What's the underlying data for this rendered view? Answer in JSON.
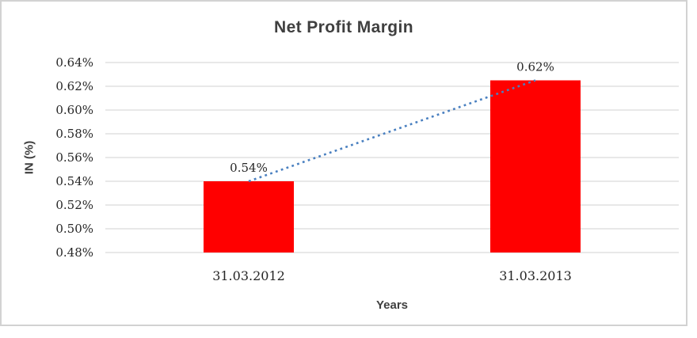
{
  "chart_data": {
    "type": "bar",
    "title": "Net Profit Margin",
    "xlabel": "Years",
    "ylabel": "IN (%)",
    "categories": [
      "31.03.2012",
      "31.03.2013"
    ],
    "values": [
      0.54,
      0.62
    ],
    "data_labels": [
      "0.54%",
      "0.62%"
    ],
    "plotted_values": [
      0.54,
      0.625
    ],
    "y_ticks": [
      "0.64%",
      "0.62%",
      "0.60%",
      "0.58%",
      "0.56%",
      "0.54%",
      "0.52%",
      "0.50%",
      "0.48%"
    ],
    "ylim": [
      0.48,
      0.64
    ],
    "y_step": 0.02,
    "grid": true,
    "legend": "none",
    "bar_color": "#ff0000",
    "gridline_color": "#d9d9d9",
    "trendline": {
      "type": "linear",
      "style": "dotted",
      "color": "#4a80c0"
    }
  },
  "frame": {
    "border_color": "#d2d2d2"
  }
}
